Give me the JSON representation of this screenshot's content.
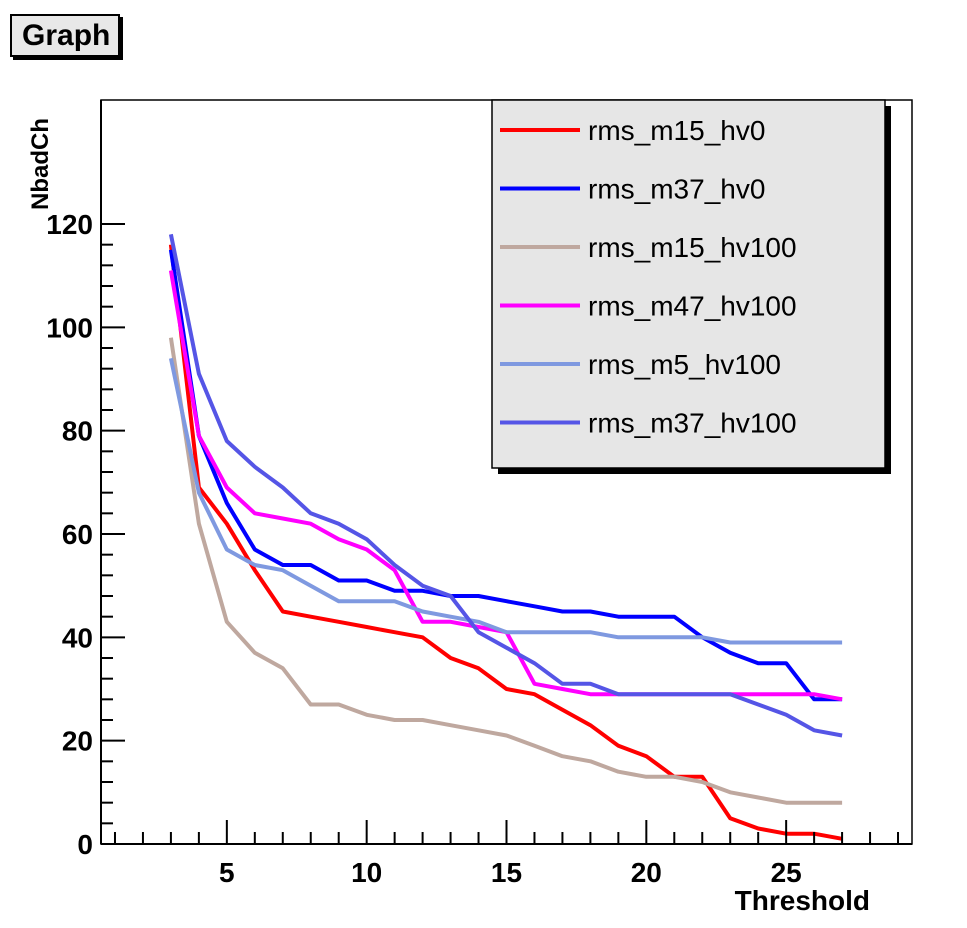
{
  "chart_data": {
    "type": "line",
    "title": "Graph",
    "xlabel": "Threshold",
    "ylabel": "NbadCh",
    "xlim": [
      0.5,
      29.5
    ],
    "ylim": [
      0,
      120
    ],
    "x_ticks": [
      5,
      10,
      15,
      20,
      25
    ],
    "y_ticks": [
      0,
      20,
      40,
      60,
      80,
      100,
      120
    ],
    "grid": false,
    "legend_position": "top-right",
    "x": [
      3,
      4,
      5,
      6,
      7,
      8,
      9,
      10,
      11,
      12,
      13,
      14,
      15,
      16,
      17,
      18,
      19,
      20,
      21,
      22,
      23,
      24,
      25,
      26,
      27
    ],
    "series": [
      {
        "name": "rms_m15_hv0",
        "color": "#ff0000",
        "values": [
          116,
          69,
          62,
          53,
          45,
          44,
          43,
          42,
          41,
          40,
          36,
          34,
          30,
          29,
          26,
          23,
          19,
          17,
          13,
          13,
          5,
          3,
          2,
          2,
          1
        ]
      },
      {
        "name": "rms_m37_hv0",
        "color": "#0000ff",
        "values": [
          115,
          79,
          66,
          57,
          54,
          54,
          51,
          51,
          49,
          49,
          48,
          48,
          47,
          46,
          45,
          45,
          44,
          44,
          44,
          40,
          37,
          35,
          35,
          28,
          28
        ]
      },
      {
        "name": "rms_m15_hv100",
        "color": "#bfa89f",
        "values": [
          98,
          62,
          43,
          37,
          34,
          27,
          27,
          25,
          24,
          24,
          23,
          22,
          21,
          19,
          17,
          16,
          14,
          13,
          13,
          12,
          10,
          9,
          8,
          8,
          8
        ]
      },
      {
        "name": "rms_m47_hv100",
        "color": "#ff00ff",
        "values": [
          111,
          79,
          69,
          64,
          63,
          62,
          59,
          57,
          53,
          43,
          43,
          42,
          41,
          31,
          30,
          29,
          29,
          29,
          29,
          29,
          29,
          29,
          29,
          29,
          28
        ]
      },
      {
        "name": "rms_m5_hv100",
        "color": "#7f99e0",
        "values": [
          94,
          68,
          57,
          54,
          53,
          50,
          47,
          47,
          47,
          45,
          44,
          43,
          41,
          41,
          41,
          41,
          40,
          40,
          40,
          40,
          39,
          39,
          39,
          39,
          39
        ]
      },
      {
        "name": "rms_m37_hv100",
        "color": "#5555e6",
        "values": [
          118,
          91,
          78,
          73,
          69,
          64,
          62,
          59,
          54,
          50,
          48,
          41,
          38,
          35,
          31,
          31,
          29,
          29,
          29,
          29,
          29,
          27,
          25,
          22,
          21
        ]
      }
    ]
  }
}
